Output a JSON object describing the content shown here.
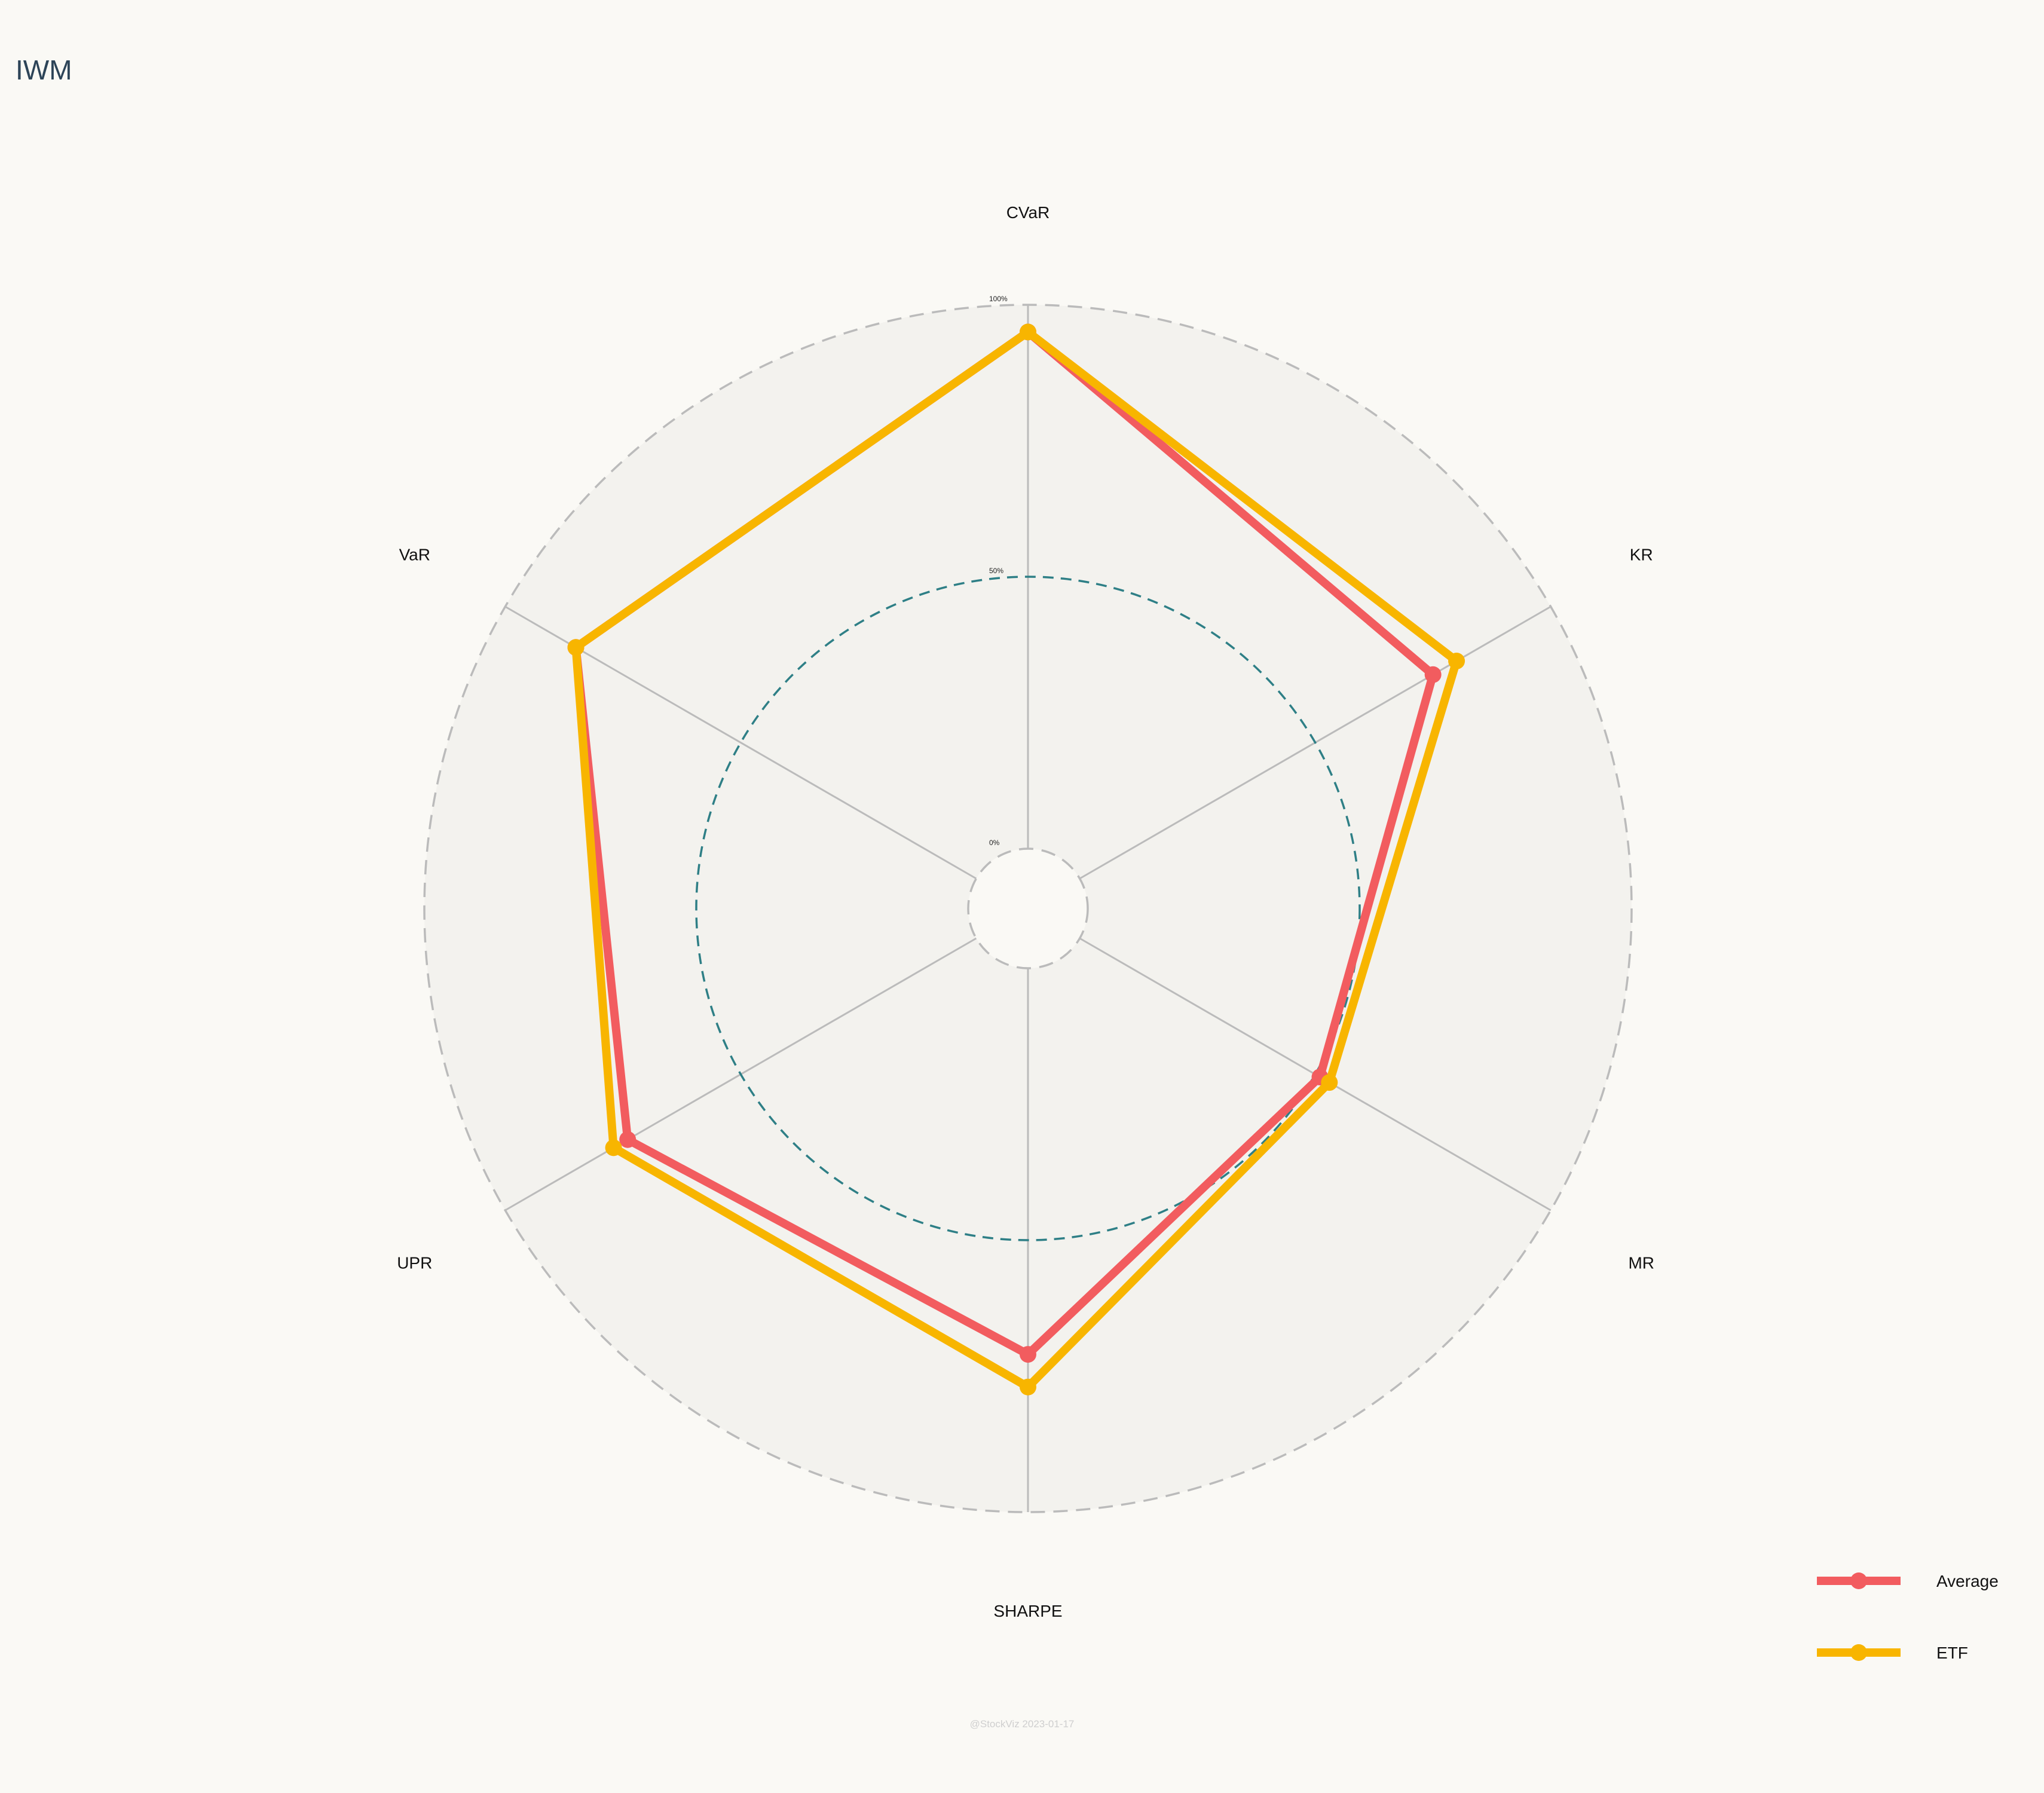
{
  "page": {
    "title": "IWM",
    "watermark": "@StockViz 2023-01-17"
  },
  "chart_data": {
    "type": "radar",
    "title": "IWM",
    "axes": [
      "CVaR",
      "KR",
      "MR",
      "SHARPE",
      "UPR",
      "VaR"
    ],
    "range": [
      0,
      100
    ],
    "ticks": [
      {
        "value": 0,
        "label": "0%"
      },
      {
        "value": 50,
        "label": "50%"
      },
      {
        "value": 100,
        "label": "100%"
      }
    ],
    "legend_position": "bottom-right",
    "series": [
      {
        "name": "Average",
        "color": "#f25c5f",
        "values": [
          95,
          75,
          51,
          71,
          74,
          85
        ]
      },
      {
        "name": "ETF",
        "color": "#f8b500",
        "values": [
          95,
          80,
          53,
          77,
          77,
          85
        ]
      }
    ],
    "colors": {
      "background": "#faf9f5",
      "plot_fill": "#f3f2ee",
      "grid": "#bbbbbb",
      "mid_ring": "#2e7f86",
      "title": "#2d4458"
    }
  }
}
